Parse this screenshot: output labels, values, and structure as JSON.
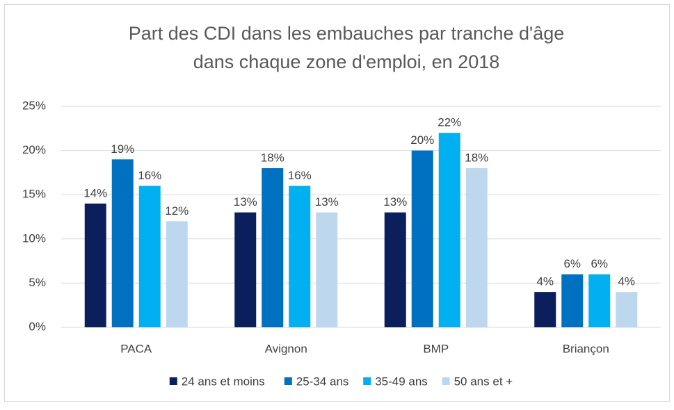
{
  "chart_data": {
    "type": "bar",
    "title": [
      "Part des CDI dans les embauches par tranche d'âge",
      "dans chaque zone d'emploi, en 2018"
    ],
    "categories": [
      "PACA",
      "Avignon",
      "BMP",
      "Briançon"
    ],
    "series": [
      {
        "name": "24 ans et moins",
        "color": "#0b1f5c",
        "values": [
          14,
          13,
          13,
          4
        ],
        "value_labels": [
          "14%",
          "13%",
          "13%",
          "4%"
        ]
      },
      {
        "name": "25-34 ans",
        "color": "#0070c0",
        "values": [
          19,
          18,
          20,
          6
        ],
        "value_labels": [
          "19%",
          "18%",
          "20%",
          "6%"
        ]
      },
      {
        "name": "35-49 ans",
        "color": "#00b0f0",
        "values": [
          16,
          16,
          22,
          6
        ],
        "value_labels": [
          "16%",
          "16%",
          "22%",
          "6%"
        ]
      },
      {
        "name": "50 ans et +",
        "color": "#bdd7ee",
        "values": [
          12,
          13,
          18,
          4
        ],
        "value_labels": [
          "12%",
          "13%",
          "18%",
          "4%"
        ]
      }
    ],
    "ylim": [
      0,
      25
    ],
    "yticks": [
      {
        "value": 0,
        "label": "0%"
      },
      {
        "value": 5,
        "label": "5%"
      },
      {
        "value": 10,
        "label": "10%"
      },
      {
        "value": 15,
        "label": "15%"
      },
      {
        "value": 20,
        "label": "20%"
      },
      {
        "value": 25,
        "label": "25%"
      }
    ],
    "grid": true,
    "legend": "bottom"
  }
}
